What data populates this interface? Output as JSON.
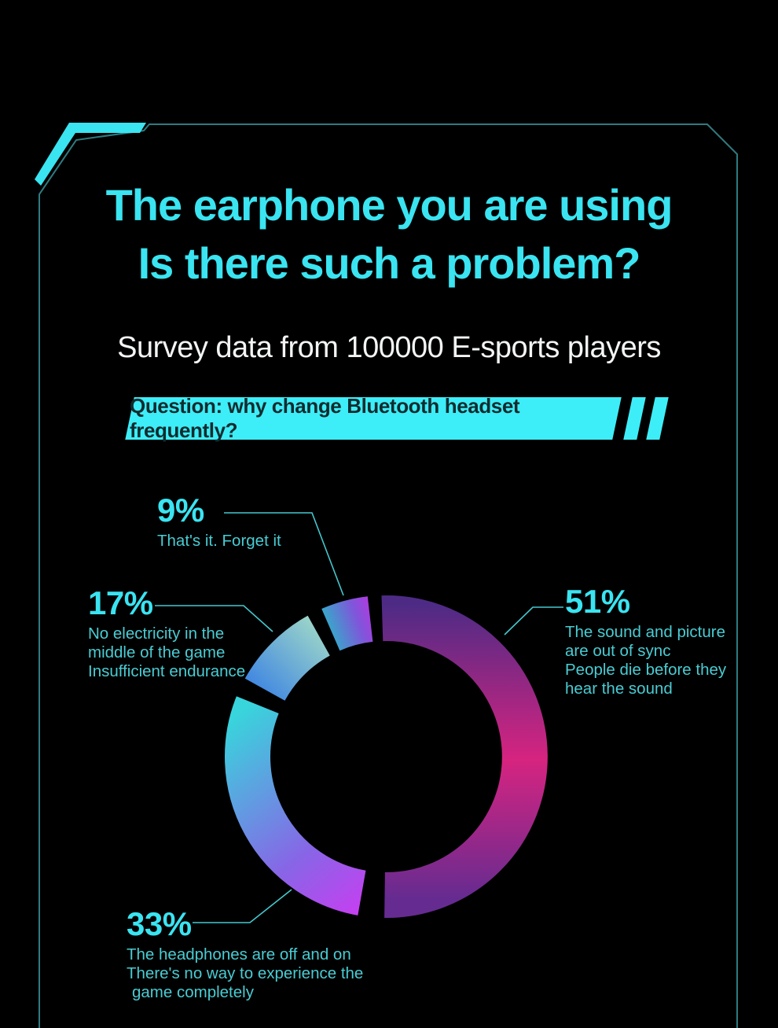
{
  "colors": {
    "background": "#000000",
    "accent_cyan": "#3ae4f1",
    "text_cyan_dim": "#49ccd3",
    "leader_line": "#44c8cf",
    "subtitle_white": "#f3f5f5",
    "frame_line": "#2e7b80",
    "banner_bg": "#3deef8",
    "banner_text": "#112b2e"
  },
  "header": {
    "title_line1": "The earphone you are using",
    "title_line2": "Is there such a problem?",
    "subtitle": "Survey data from 100000 E-sports players"
  },
  "banner": {
    "label": "Question: why change Bluetooth headset frequently?"
  },
  "chart_data": {
    "type": "pie",
    "variant": "donut",
    "title": "Question: why change Bluetooth headset frequently?",
    "source_note": "Survey data from 100000 E-sports players",
    "unit": "%",
    "legend_position": "callouts",
    "segments": [
      {
        "label": "51%",
        "value": 51,
        "description": [
          "The sound and picture",
          "are out of sync",
          "People die before they",
          "hear the sound"
        ],
        "arc_start_deg": -1.5,
        "arc_end_deg": 180.5,
        "gradient": [
          "#4d2b85",
          "#d62480",
          "#662b90"
        ]
      },
      {
        "label": "33%",
        "value": 33,
        "description": [
          "The headphones are off and on",
          "There's no way to experience the",
          "game completely"
        ],
        "arc_start_deg": 190,
        "arc_end_deg": 292,
        "gradient": [
          "#38d5dc",
          "#8766e6",
          "#e52cf6"
        ]
      },
      {
        "label": "17%",
        "value": 17,
        "description": [
          "No electricity in the",
          "middle of the game",
          "Insufficient endurance"
        ],
        "arc_start_deg": 299,
        "arc_end_deg": 331,
        "gradient": [
          "#448ae0",
          "#9fd8c8"
        ]
      },
      {
        "label": "9%",
        "value": 9,
        "description": [
          "That's it. Forget it"
        ],
        "arc_start_deg": 336.5,
        "arc_end_deg": 353.5,
        "gradient": [
          "#2fb2c8",
          "#7e57da",
          "#c92ce2"
        ]
      }
    ]
  }
}
